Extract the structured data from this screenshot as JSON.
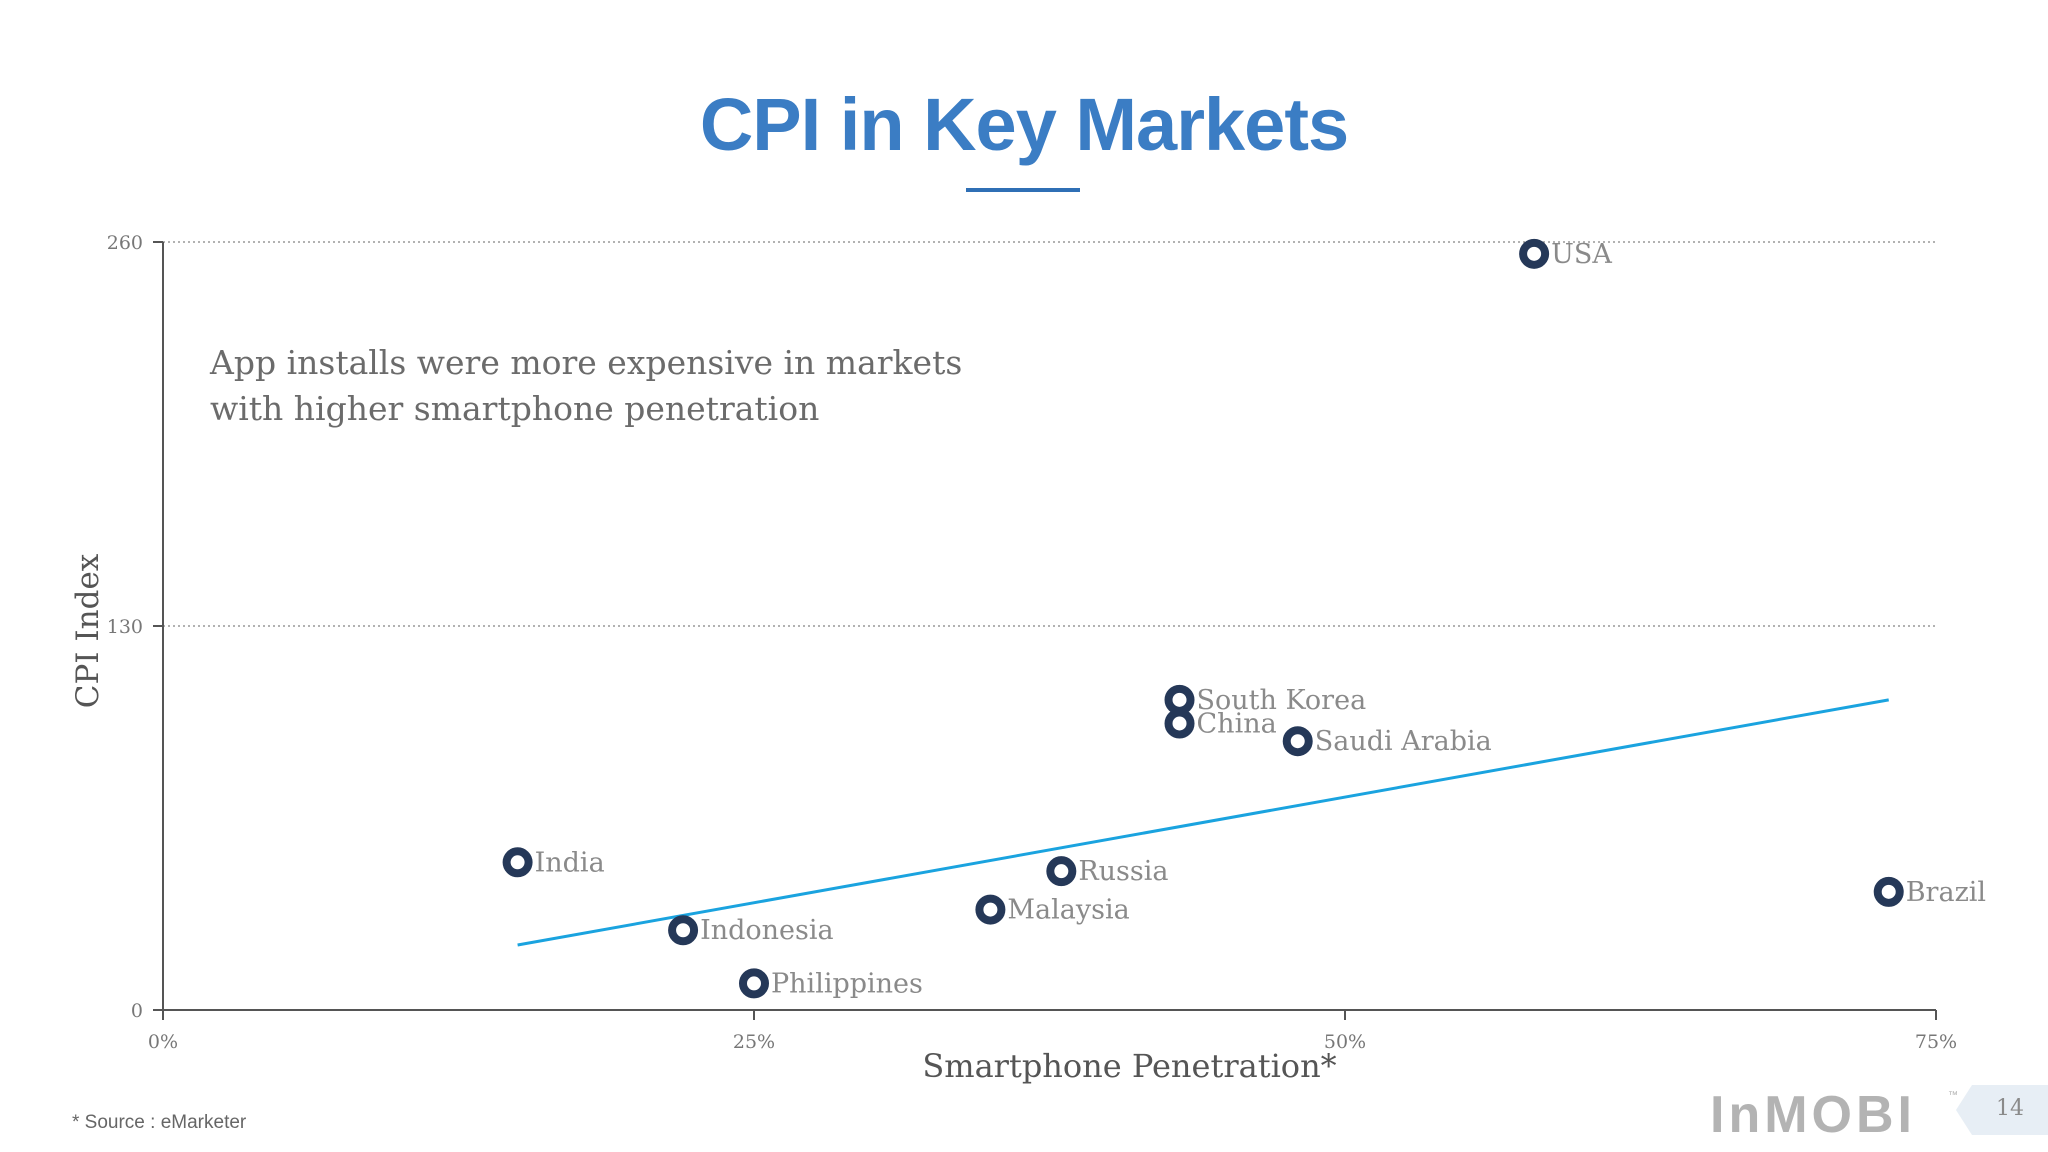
{
  "slide": {
    "title": "CPI in Key Markets",
    "annotation": [
      "App installs were more expensive in markets",
      "with higher smartphone penetration"
    ],
    "footnote": "* Source : eMarketer",
    "logo": "InMOBI",
    "logo_mark": "™",
    "page_number": "14"
  },
  "chart_data": {
    "type": "scatter",
    "title": "CPI in Key Markets",
    "xlabel": "Smartphone Penetration*",
    "ylabel": "CPI Index",
    "xlim": [
      0,
      75
    ],
    "ylim": [
      0,
      260
    ],
    "x_ticks": [
      0,
      25,
      50,
      75
    ],
    "x_tick_labels": [
      "0%",
      "25%",
      "50%",
      "75%"
    ],
    "y_ticks": [
      0,
      130,
      260
    ],
    "y_tick_labels": [
      "0",
      "130",
      "260"
    ],
    "grid": "horizontal dotted",
    "points": [
      {
        "label": "USA",
        "x": 58,
        "y": 256
      },
      {
        "label": "South Korea",
        "x": 43,
        "y": 105
      },
      {
        "label": "China",
        "x": 43,
        "y": 97
      },
      {
        "label": "Saudi Arabia",
        "x": 48,
        "y": 91
      },
      {
        "label": "India",
        "x": 15,
        "y": 50
      },
      {
        "label": "Russia",
        "x": 38,
        "y": 47
      },
      {
        "label": "Brazil",
        "x": 73,
        "y": 40
      },
      {
        "label": "Malaysia",
        "x": 35,
        "y": 34
      },
      {
        "label": "Indonesia",
        "x": 22,
        "y": 27
      },
      {
        "label": "Philippines",
        "x": 25,
        "y": 9
      }
    ],
    "trendline": {
      "x": [
        15,
        73
      ],
      "y": [
        22,
        105
      ]
    },
    "colors": {
      "marker": "#253858",
      "trendline": "#1aa3df",
      "axis": "#555555",
      "grid": "#999999",
      "title": "#3b7dc4"
    }
  }
}
